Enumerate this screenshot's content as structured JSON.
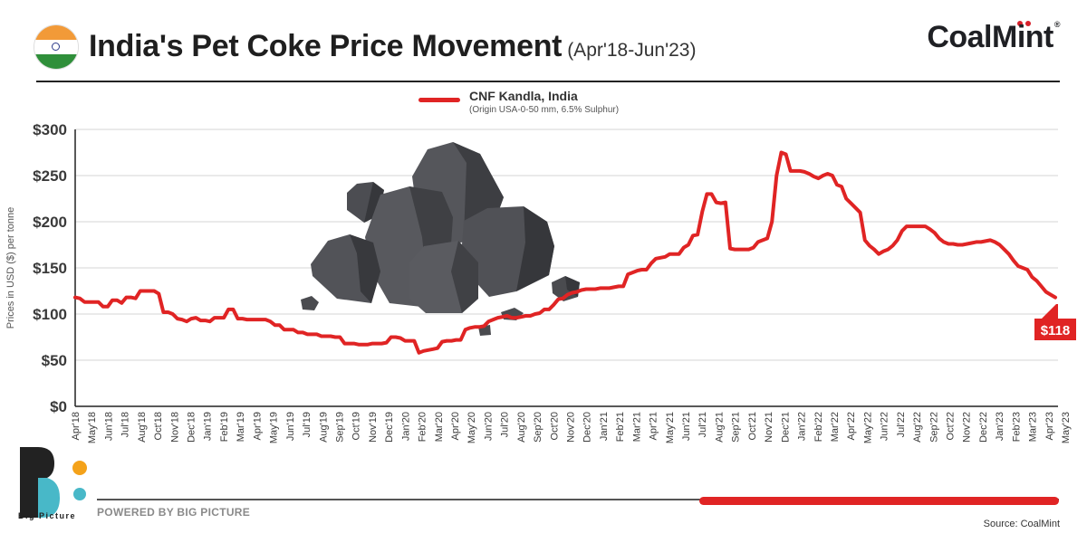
{
  "header": {
    "title": "India's Pet Coke Price Movement",
    "subtitle": "(Apr'18-Jun'23)",
    "brand": "CoalMint",
    "brand_mark": "®"
  },
  "legend": {
    "series_name": "CNF Kandla, India",
    "series_note": "(Origin USA-0-50 mm, 6.5% Sulphur)"
  },
  "footer": {
    "logo_text": "Big Picture",
    "powered_by": "POWERED BY BIG PICTURE",
    "source": "Source: CoalMint",
    "progress": 0.374
  },
  "colors": {
    "line": "#e02424",
    "axis": "#222222",
    "grid": "#d6d6d6",
    "rocks": "#4a4b4f",
    "logo_orange": "#f4a21a",
    "logo_teal": "#48b8c8"
  },
  "illustration": "coal-rocks-illustration",
  "chart_data": {
    "type": "line",
    "ylabel": "Prices in USD ($) per tonne",
    "ylim": [
      0,
      300
    ],
    "yticks": [
      0,
      50,
      100,
      150,
      200,
      250,
      300
    ],
    "ytick_labels": [
      "$0",
      "$50",
      "$100",
      "$150",
      "$200",
      "$250",
      "$300"
    ],
    "grid": true,
    "legend_position": "top-center",
    "x_labels": [
      "Apr'18",
      "May'18",
      "Jun'18",
      "Jul'18",
      "Aug'18",
      "Oct'18",
      "Nov'18",
      "Dec'18",
      "Jan'19",
      "Feb'19",
      "Mar'19",
      "Apr'19",
      "May'19",
      "Jun'19",
      "Jul'19",
      "Aug'19",
      "Sep'19",
      "Oct'19",
      "Nov'19",
      "Dec'19",
      "Jan'20",
      "Feb'20",
      "Mar'20",
      "Apr'20",
      "May'20",
      "Jun'20",
      "Jul'20",
      "Aug'20",
      "Sep'20",
      "Oct'20",
      "Nov'20",
      "Dec'20",
      "Jan'21",
      "Feb'21",
      "Mar'21",
      "Apr'21",
      "May'21",
      "Jun'21",
      "Jul'21",
      "Aug'21",
      "Sep'21",
      "Oct'21",
      "Nov'21",
      "Dec'21",
      "Jan'22",
      "Feb'22",
      "Mar'22",
      "Apr'22",
      "May'22",
      "Jun'22",
      "Jul'22",
      "Aug'22",
      "Sep'22",
      "Oct'22",
      "Nov'22",
      "Dec'22",
      "Jan'23",
      "Feb'23",
      "Mar'23",
      "Apr'23",
      "May'23"
    ],
    "series": [
      {
        "name": "CNF Kandla, India",
        "values": [
          118,
          117,
          113,
          113,
          113,
          113,
          108,
          108,
          115,
          115,
          112,
          118,
          118,
          117,
          125,
          125,
          125,
          125,
          122,
          102,
          102,
          100,
          95,
          94,
          92,
          95,
          96,
          93,
          93,
          92,
          96,
          96,
          96,
          105,
          105,
          95,
          95,
          94,
          94,
          94,
          94,
          94,
          92,
          88,
          88,
          83,
          83,
          83,
          80,
          80,
          78,
          78,
          78,
          76,
          76,
          76,
          75,
          75,
          68,
          68,
          68,
          67,
          67,
          67,
          68,
          68,
          68,
          69,
          75,
          75,
          74,
          71,
          71,
          71,
          58,
          60,
          61,
          62,
          63,
          70,
          71,
          71,
          72,
          72,
          83,
          85,
          86,
          86,
          87,
          92,
          94,
          96,
          97,
          98,
          96,
          96,
          97,
          98,
          98,
          100,
          101,
          105,
          105,
          110,
          116,
          117,
          121,
          123,
          124,
          126,
          127,
          127,
          127,
          128,
          128,
          128,
          129,
          130,
          130,
          143,
          145,
          147,
          148,
          148,
          155,
          160,
          161,
          162,
          165,
          165,
          165,
          172,
          175,
          185,
          186,
          211,
          230,
          230,
          221,
          220,
          221,
          171,
          170,
          170,
          170,
          170,
          172,
          178,
          180,
          182,
          200,
          250,
          275,
          273,
          255,
          255,
          255,
          254,
          252,
          249,
          247,
          250,
          252,
          250,
          240,
          238,
          225,
          220,
          215,
          210,
          180,
          174,
          170,
          165,
          168,
          170,
          174,
          180,
          190,
          195,
          195,
          195,
          195,
          195,
          192,
          188,
          182,
          178,
          176,
          176,
          175,
          175,
          176,
          177,
          178,
          178,
          179,
          180,
          178,
          175,
          170,
          165,
          158,
          152,
          150,
          148,
          140,
          136,
          130,
          124,
          121,
          118
        ]
      }
    ],
    "end_label": "$118"
  }
}
